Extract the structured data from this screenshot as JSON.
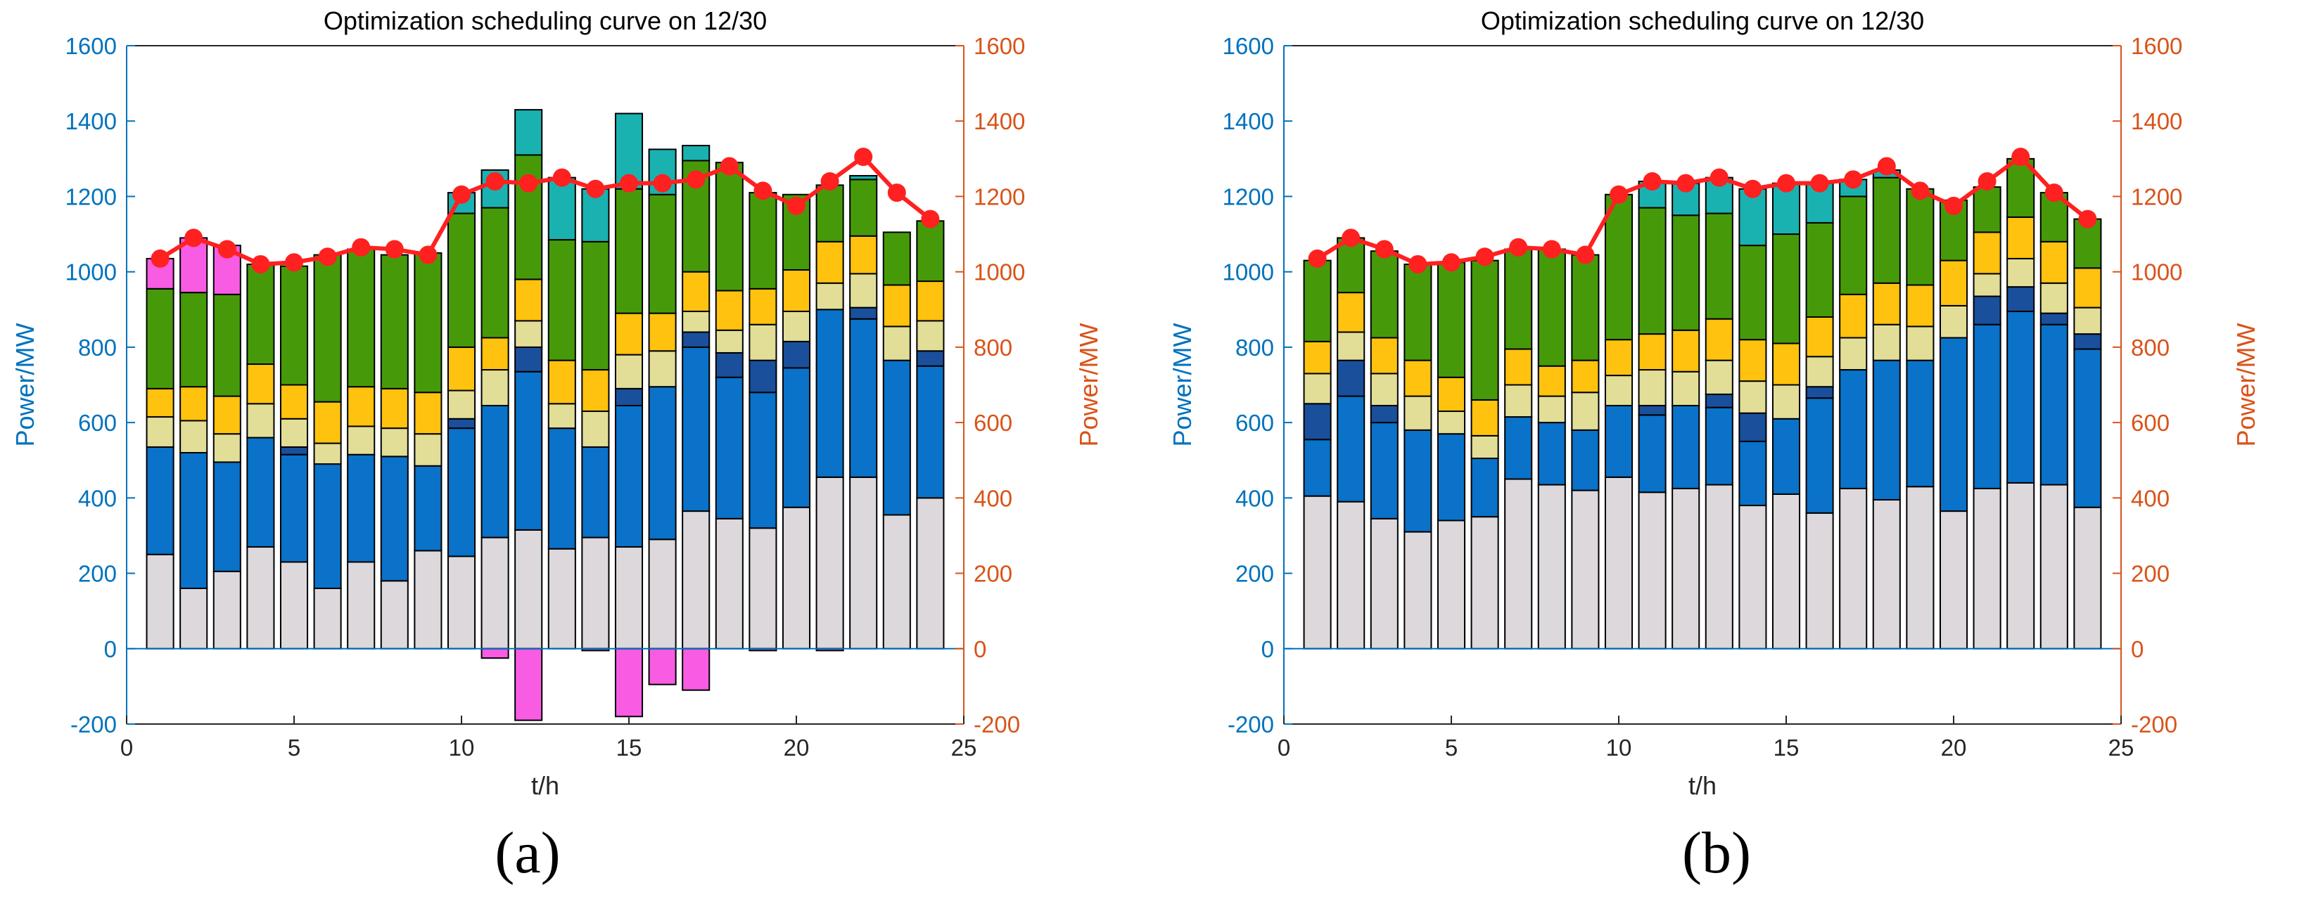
{
  "colors": {
    "axis_left": "#0072BD",
    "axis_right": "#D95319",
    "load_line": "#FF2020",
    "zero_line": "#0072BD"
  },
  "chart_data": [
    {
      "type": "bar",
      "panel_label": "(a)",
      "title": "Optimization scheduling curve on 12/30",
      "xlabel": "t/h",
      "ylabel_left": "Power/MW",
      "ylabel_right": "Power/MW",
      "xlim": [
        0,
        25
      ],
      "ylim": [
        -200,
        1600
      ],
      "xticks": [
        0,
        5,
        10,
        15,
        20,
        25
      ],
      "yticks": [
        -200,
        0,
        200,
        400,
        600,
        800,
        1000,
        1200,
        1400,
        1600
      ],
      "grid": false,
      "categories": [
        1,
        2,
        3,
        4,
        5,
        6,
        7,
        8,
        9,
        10,
        11,
        12,
        13,
        14,
        15,
        16,
        17,
        18,
        19,
        20,
        21,
        22,
        23,
        24
      ],
      "series": [
        {
          "color": "#DCD8DC",
          "values": [
            250,
            160,
            205,
            270,
            230,
            160,
            230,
            180,
            260,
            245,
            295,
            315,
            265,
            295,
            270,
            290,
            365,
            345,
            320,
            375,
            455,
            455,
            355,
            400
          ]
        },
        {
          "color": "#0A72C8",
          "values": [
            285,
            360,
            290,
            290,
            285,
            330,
            285,
            330,
            225,
            340,
            350,
            420,
            320,
            240,
            375,
            405,
            435,
            375,
            360,
            370,
            445,
            420,
            410,
            350
          ]
        },
        {
          "color": "#1A4F9C",
          "values": [
            0,
            0,
            0,
            0,
            20,
            0,
            0,
            0,
            0,
            25,
            0,
            65,
            0,
            0,
            45,
            0,
            40,
            65,
            85,
            70,
            0,
            30,
            0,
            40
          ]
        },
        {
          "color": "#E2DE98",
          "values": [
            80,
            85,
            75,
            90,
            75,
            55,
            75,
            75,
            85,
            75,
            95,
            70,
            65,
            95,
            90,
            95,
            55,
            60,
            95,
            80,
            70,
            90,
            90,
            80
          ]
        },
        {
          "color": "#FFC20E",
          "values": [
            75,
            90,
            100,
            105,
            90,
            110,
            105,
            105,
            110,
            115,
            85,
            110,
            115,
            110,
            110,
            100,
            105,
            105,
            95,
            110,
            110,
            100,
            110,
            105
          ]
        },
        {
          "color": "#469A0A",
          "values": [
            265,
            250,
            270,
            265,
            315,
            390,
            365,
            355,
            370,
            355,
            345,
            330,
            320,
            340,
            330,
            315,
            295,
            340,
            255,
            200,
            150,
            150,
            140,
            160
          ]
        },
        {
          "color": "#1AB2B0",
          "values": [
            0,
            0,
            0,
            0,
            0,
            0,
            0,
            0,
            0,
            55,
            100,
            120,
            165,
            140,
            200,
            120,
            40,
            0,
            0,
            0,
            0,
            10,
            0,
            0
          ]
        },
        {
          "color": "#F75CE3",
          "values": [
            80,
            145,
            130,
            0,
            0,
            0,
            0,
            0,
            0,
            0,
            -25,
            -190,
            0,
            -5,
            -180,
            -95,
            -110,
            0,
            -5,
            0,
            -5,
            0,
            0,
            0
          ]
        }
      ],
      "load": [
        1035,
        1090,
        1060,
        1020,
        1025,
        1040,
        1065,
        1060,
        1045,
        1205,
        1240,
        1235,
        1250,
        1220,
        1235,
        1235,
        1245,
        1280,
        1215,
        1175,
        1240,
        1305,
        1210,
        1140
      ]
    },
    {
      "type": "bar",
      "panel_label": "(b)",
      "title": "Optimization scheduling curve on 12/30",
      "xlabel": "t/h",
      "ylabel_left": "Power/MW",
      "ylabel_right": "Power/MW",
      "xlim": [
        0,
        25
      ],
      "ylim": [
        -200,
        1600
      ],
      "xticks": [
        0,
        5,
        10,
        15,
        20,
        25
      ],
      "yticks": [
        -200,
        0,
        200,
        400,
        600,
        800,
        1000,
        1200,
        1400,
        1600
      ],
      "grid": false,
      "categories": [
        1,
        2,
        3,
        4,
        5,
        6,
        7,
        8,
        9,
        10,
        11,
        12,
        13,
        14,
        15,
        16,
        17,
        18,
        19,
        20,
        21,
        22,
        23,
        24
      ],
      "series": [
        {
          "color": "#DCD8DC",
          "values": [
            405,
            390,
            345,
            310,
            340,
            350,
            450,
            435,
            420,
            455,
            415,
            425,
            435,
            380,
            410,
            360,
            425,
            395,
            430,
            365,
            425,
            440,
            435,
            375
          ]
        },
        {
          "color": "#0A72C8",
          "values": [
            150,
            280,
            255,
            270,
            230,
            155,
            165,
            165,
            160,
            190,
            205,
            220,
            205,
            170,
            200,
            305,
            315,
            370,
            335,
            460,
            435,
            455,
            425,
            420
          ]
        },
        {
          "color": "#1A4F9C",
          "values": [
            95,
            95,
            45,
            0,
            0,
            0,
            0,
            0,
            0,
            0,
            25,
            0,
            35,
            75,
            0,
            30,
            0,
            0,
            0,
            0,
            75,
            65,
            30,
            40
          ]
        },
        {
          "color": "#E2DE98",
          "values": [
            80,
            75,
            85,
            90,
            60,
            60,
            85,
            70,
            100,
            80,
            95,
            90,
            90,
            85,
            90,
            80,
            85,
            95,
            90,
            85,
            60,
            75,
            80,
            70
          ]
        },
        {
          "color": "#FFC20E",
          "values": [
            85,
            105,
            95,
            95,
            90,
            95,
            95,
            80,
            85,
            95,
            95,
            110,
            110,
            110,
            110,
            105,
            115,
            110,
            110,
            120,
            110,
            110,
            110,
            105
          ]
        },
        {
          "color": "#469A0A",
          "values": [
            215,
            145,
            230,
            255,
            305,
            370,
            265,
            310,
            280,
            385,
            335,
            305,
            280,
            250,
            290,
            250,
            260,
            280,
            255,
            160,
            120,
            155,
            130,
            130
          ]
        },
        {
          "color": "#1AB2B0",
          "values": [
            0,
            0,
            0,
            0,
            0,
            0,
            0,
            0,
            0,
            0,
            70,
            85,
            95,
            150,
            135,
            105,
            45,
            20,
            0,
            0,
            0,
            0,
            0,
            0
          ]
        },
        {
          "color": "#F75CE3",
          "values": [
            0,
            0,
            0,
            0,
            0,
            0,
            0,
            0,
            0,
            0,
            0,
            0,
            0,
            0,
            0,
            0,
            0,
            0,
            0,
            0,
            0,
            0,
            0,
            0
          ]
        }
      ],
      "load": [
        1035,
        1090,
        1060,
        1020,
        1025,
        1040,
        1065,
        1060,
        1045,
        1205,
        1240,
        1235,
        1250,
        1220,
        1235,
        1235,
        1245,
        1280,
        1215,
        1175,
        1240,
        1305,
        1210,
        1140
      ]
    }
  ]
}
